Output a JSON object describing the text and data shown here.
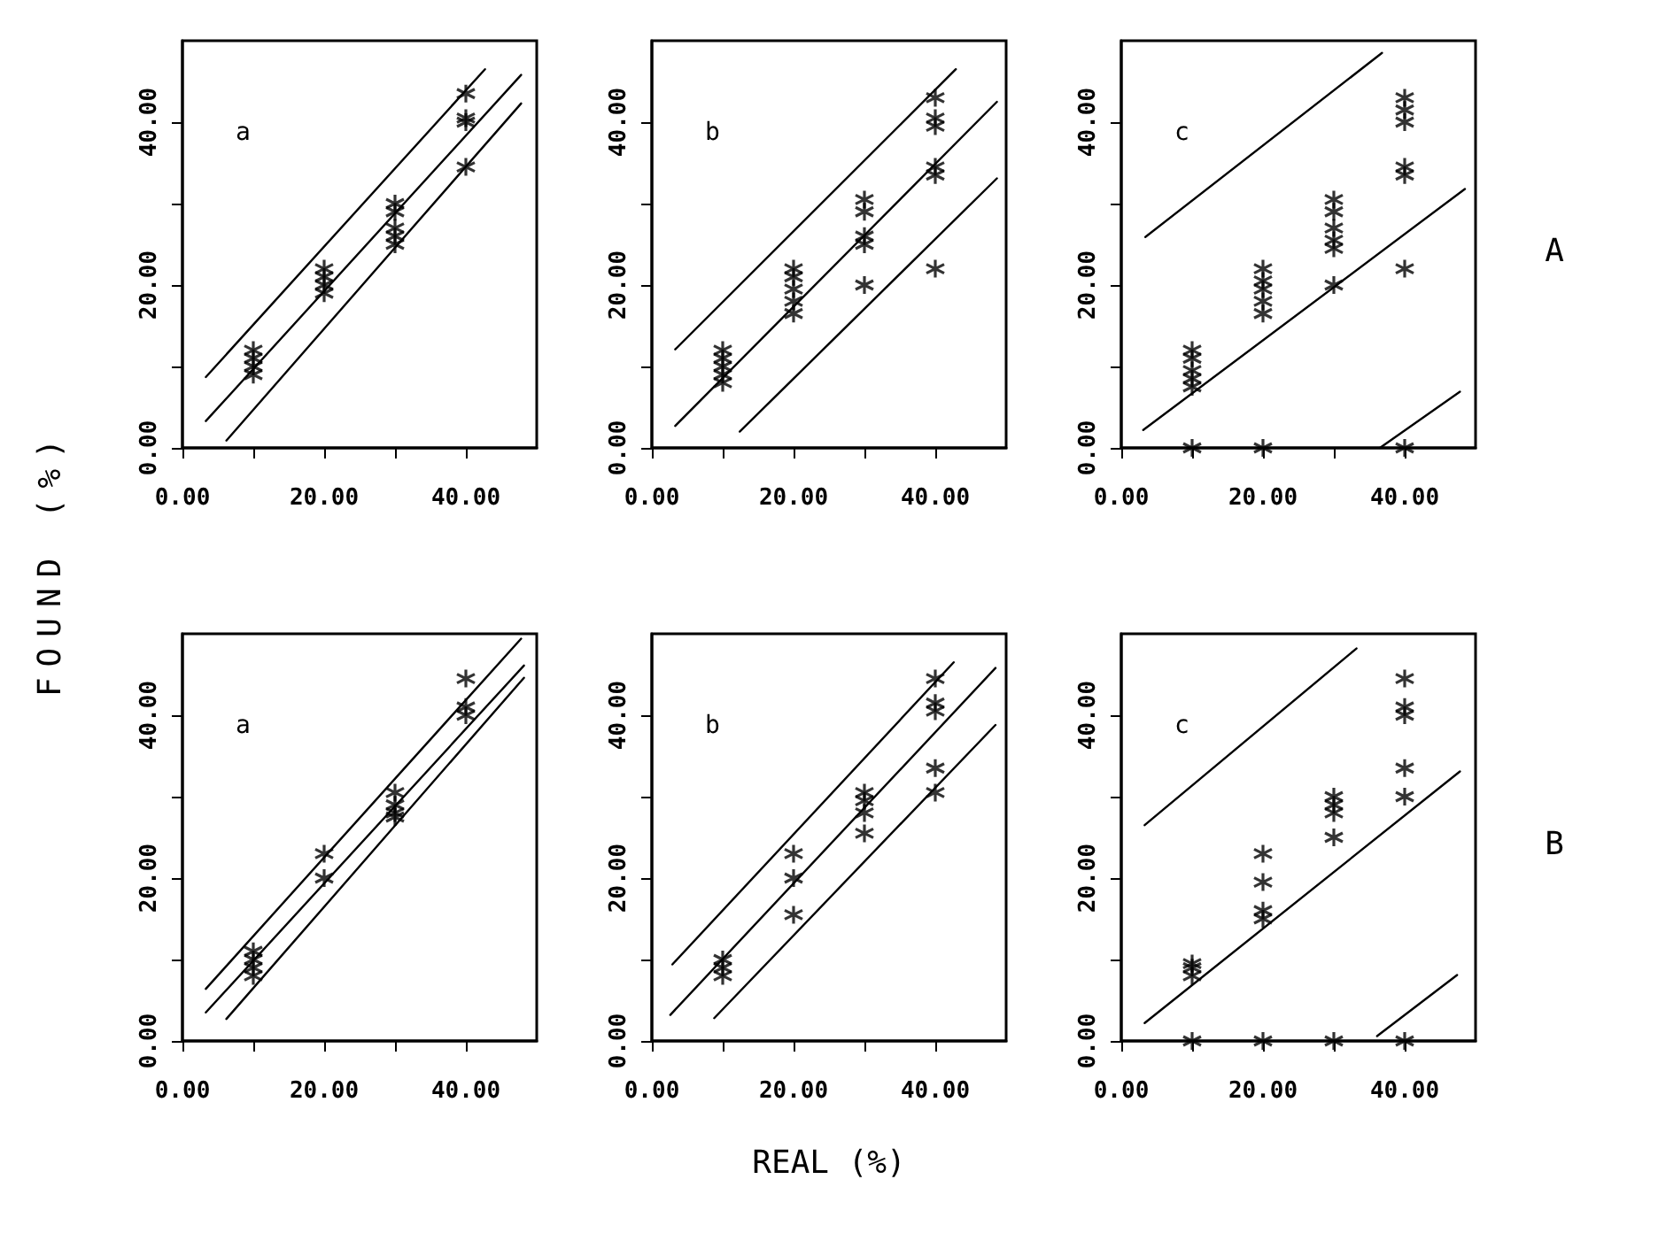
{
  "chart_data": [
    {
      "type": "scatter",
      "ylabel": "FOUND (%)",
      "annotations": [
        "a"
      ],
      "marker": "cross",
      "xlim": [
        0,
        50
      ],
      "ylim": [
        0,
        50
      ],
      "xticks": [
        {
          "value": 0,
          "label": "0.00"
        },
        {
          "value": 10,
          "label": null
        },
        {
          "value": 20,
          "label": "20.00"
        },
        {
          "value": 30,
          "label": null
        },
        {
          "value": 40,
          "label": "40.00"
        }
      ],
      "yticks": [
        {
          "value": 0,
          "label": "0.00"
        },
        {
          "value": 10,
          "label": null
        },
        {
          "value": 20,
          "label": "20.00"
        },
        {
          "value": 30,
          "label": null
        },
        {
          "value": 40,
          "label": "40.00"
        }
      ],
      "series": [
        {
          "color": "#000000",
          "x": [
            10,
            10,
            10,
            10,
            20,
            20,
            20,
            20,
            30,
            30,
            30,
            30,
            30,
            40,
            40,
            40,
            40
          ],
          "values": [
            9,
            10,
            11,
            12,
            19,
            20,
            21,
            22,
            30,
            29,
            27,
            26,
            25,
            43.5,
            40.5,
            40,
            34.5
          ]
        },
        {
          "type": "line",
          "marker": "none",
          "color": "#000000",
          "x": [
            3.3,
            42.7
          ],
          "values": [
            8.7,
            46.5
          ]
        },
        {
          "type": "line",
          "marker": "none",
          "color": "#000000",
          "x": [
            3.3,
            47.8
          ],
          "values": [
            3.3,
            45.8
          ]
        },
        {
          "type": "line",
          "marker": "none",
          "color": "#000000",
          "x": [
            6.2,
            47.8
          ],
          "values": [
            0.9,
            42.3
          ]
        }
      ]
    },
    {
      "type": "scatter",
      "annotations": [
        "b"
      ],
      "marker": "cross",
      "xlim": [
        0,
        50
      ],
      "ylim": [
        0,
        50
      ],
      "xticks": [
        {
          "value": 0,
          "label": "0.00"
        },
        {
          "value": 10,
          "label": null
        },
        {
          "value": 20,
          "label": "20.00"
        },
        {
          "value": 30,
          "label": null
        },
        {
          "value": 40,
          "label": "40.00"
        }
      ],
      "yticks": [
        {
          "value": 0,
          "label": "0.00"
        },
        {
          "value": 10,
          "label": null
        },
        {
          "value": 20,
          "label": "20.00"
        },
        {
          "value": 30,
          "label": null
        },
        {
          "value": 40,
          "label": "40.00"
        }
      ],
      "series": [
        {
          "color": "#000000",
          "x": [
            10,
            10,
            10,
            10,
            10,
            20,
            20,
            20,
            20,
            20,
            30,
            30,
            30,
            30,
            30,
            40,
            40,
            40,
            40,
            40,
            40
          ],
          "values": [
            8,
            9,
            10,
            11,
            12,
            22,
            21,
            19.5,
            18,
            16.5,
            30.5,
            29,
            26,
            25,
            20,
            43,
            40.5,
            39.5,
            34.5,
            33.5,
            22
          ]
        },
        {
          "type": "line",
          "marker": "none",
          "color": "#000000",
          "x": [
            3.3,
            42.9
          ],
          "values": [
            12.1,
            46.5
          ]
        },
        {
          "type": "line",
          "marker": "none",
          "color": "#000000",
          "x": [
            3.3,
            48.7
          ],
          "values": [
            2.7,
            42.5
          ]
        },
        {
          "type": "line",
          "marker": "none",
          "color": "#000000",
          "x": [
            12.4,
            48.7
          ],
          "values": [
            2,
            33.1
          ]
        }
      ]
    },
    {
      "type": "scatter",
      "annotations": [
        "c",
        "A"
      ],
      "marker": "cross",
      "xlim": [
        0,
        50
      ],
      "ylim": [
        0,
        50
      ],
      "xticks": [
        {
          "value": 0,
          "label": "0.00"
        },
        {
          "value": 10,
          "label": null
        },
        {
          "value": 20,
          "label": "20.00"
        },
        {
          "value": 30,
          "label": null
        },
        {
          "value": 40,
          "label": "40.00"
        }
      ],
      "yticks": [
        {
          "value": 0,
          "label": "0.00"
        },
        {
          "value": 10,
          "label": null
        },
        {
          "value": 20,
          "label": "20.00"
        },
        {
          "value": 30,
          "label": null
        },
        {
          "value": 40,
          "label": "40.00"
        }
      ],
      "series": [
        {
          "color": "#000000",
          "x": [
            10,
            10,
            10,
            10,
            10,
            10,
            20,
            20,
            20,
            20,
            20,
            20,
            30,
            30,
            30,
            30,
            30,
            30,
            40,
            40,
            40,
            40,
            40,
            40,
            40
          ],
          "values": [
            7.5,
            8.5,
            9.5,
            11,
            12,
            0,
            22,
            20.5,
            19.5,
            18,
            16.5,
            0,
            30.5,
            29,
            27,
            25.5,
            24.5,
            20,
            43,
            41.5,
            40,
            34.5,
            33.5,
            22,
            0
          ]
        },
        {
          "type": "line",
          "marker": "none",
          "color": "#000000",
          "x": [
            3.4,
            36.8
          ],
          "values": [
            25.9,
            48.5
          ]
        },
        {
          "type": "line",
          "marker": "none",
          "color": "#000000",
          "x": [
            3.1,
            48.5
          ],
          "values": [
            2.2,
            31.8
          ]
        },
        {
          "type": "line",
          "marker": "none",
          "color": "#000000",
          "x": [
            36.5,
            47.8
          ],
          "values": [
            0,
            6.9
          ]
        }
      ]
    },
    {
      "type": "scatter",
      "annotations": [
        "a"
      ],
      "marker": "cross",
      "xlim": [
        0,
        50
      ],
      "ylim": [
        0,
        50
      ],
      "xticks": [
        {
          "value": 0,
          "label": "0.00"
        },
        {
          "value": 10,
          "label": null
        },
        {
          "value": 20,
          "label": "20.00"
        },
        {
          "value": 30,
          "label": null
        },
        {
          "value": 40,
          "label": "40.00"
        }
      ],
      "yticks": [
        {
          "value": 0,
          "label": "0.00"
        },
        {
          "value": 10,
          "label": null
        },
        {
          "value": 20,
          "label": "20.00"
        },
        {
          "value": 30,
          "label": null
        },
        {
          "value": 40,
          "label": "40.00"
        }
      ],
      "series": [
        {
          "color": "#000000",
          "x": [
            10,
            10,
            10,
            10,
            20,
            20,
            30,
            30,
            30,
            30,
            40,
            40,
            40
          ],
          "values": [
            8,
            9,
            10,
            11,
            23,
            20,
            30.5,
            29,
            28,
            27.5,
            44.5,
            41,
            40
          ]
        },
        {
          "type": "line",
          "marker": "none",
          "color": "#000000",
          "x": [
            3.3,
            47.8
          ],
          "values": [
            6.4,
            49.4
          ]
        },
        {
          "type": "line",
          "marker": "none",
          "color": "#000000",
          "x": [
            3.3,
            48.2
          ],
          "values": [
            3.5,
            46.1
          ]
        },
        {
          "type": "line",
          "marker": "none",
          "color": "#000000",
          "x": [
            6.2,
            48.2
          ],
          "values": [
            2.7,
            44.6
          ]
        }
      ]
    },
    {
      "type": "scatter",
      "xlabel": "REAL (%)",
      "annotations": [
        "b"
      ],
      "marker": "cross",
      "xlim": [
        0,
        50
      ],
      "ylim": [
        0,
        50
      ],
      "xticks": [
        {
          "value": 0,
          "label": "0.00"
        },
        {
          "value": 10,
          "label": null
        },
        {
          "value": 20,
          "label": "20.00"
        },
        {
          "value": 30,
          "label": null
        },
        {
          "value": 40,
          "label": "40.00"
        }
      ],
      "yticks": [
        {
          "value": 0,
          "label": "0.00"
        },
        {
          "value": 10,
          "label": null
        },
        {
          "value": 20,
          "label": "20.00"
        },
        {
          "value": 30,
          "label": null
        },
        {
          "value": 40,
          "label": "40.00"
        }
      ],
      "series": [
        {
          "color": "#000000",
          "x": [
            10,
            10,
            10,
            20,
            20,
            20,
            30,
            30,
            30,
            30,
            40,
            40,
            40,
            40,
            40
          ],
          "values": [
            8,
            9,
            10,
            23,
            20,
            15.5,
            30.5,
            29.5,
            28,
            25.5,
            44.5,
            41.5,
            40.5,
            33.5,
            30.5
          ]
        },
        {
          "type": "line",
          "marker": "none",
          "color": "#000000",
          "x": [
            2.9,
            42.6
          ],
          "values": [
            9.4,
            46.5
          ]
        },
        {
          "type": "line",
          "marker": "none",
          "color": "#000000",
          "x": [
            2.6,
            48.5
          ],
          "values": [
            3.2,
            45.8
          ]
        },
        {
          "type": "line",
          "marker": "none",
          "color": "#000000",
          "x": [
            8.8,
            48.5
          ],
          "values": [
            2.8,
            38.8
          ]
        }
      ]
    },
    {
      "type": "scatter",
      "annotations": [
        "c",
        "B"
      ],
      "marker": "cross",
      "xlim": [
        0,
        50
      ],
      "ylim": [
        0,
        50
      ],
      "xticks": [
        {
          "value": 0,
          "label": "0.00"
        },
        {
          "value": 10,
          "label": null
        },
        {
          "value": 20,
          "label": "20.00"
        },
        {
          "value": 30,
          "label": null
        },
        {
          "value": 40,
          "label": "40.00"
        }
      ],
      "yticks": [
        {
          "value": 0,
          "label": "0.00"
        },
        {
          "value": 10,
          "label": null
        },
        {
          "value": 20,
          "label": "20.00"
        },
        {
          "value": 30,
          "label": null
        },
        {
          "value": 40,
          "label": "40.00"
        }
      ],
      "series": [
        {
          "color": "#000000",
          "x": [
            10,
            10,
            10,
            10,
            20,
            20,
            20,
            20,
            20,
            30,
            30,
            30,
            30,
            30,
            40,
            40,
            40,
            40,
            40,
            40
          ],
          "values": [
            8,
            9,
            9.5,
            0,
            23,
            19.5,
            16,
            15,
            0,
            30,
            29,
            28,
            25,
            0,
            44.5,
            41,
            40,
            33.5,
            30,
            0
          ]
        },
        {
          "type": "line",
          "marker": "none",
          "color": "#000000",
          "x": [
            3.3,
            33.2
          ],
          "values": [
            26.5,
            48.2
          ]
        },
        {
          "type": "line",
          "marker": "none",
          "color": "#000000",
          "x": [
            3.3,
            47.8
          ],
          "values": [
            2.2,
            33.1
          ]
        },
        {
          "type": "line",
          "marker": "none",
          "color": "#000000",
          "x": [
            36.1,
            47.4
          ],
          "values": [
            0.6,
            8.1
          ]
        }
      ]
    }
  ]
}
